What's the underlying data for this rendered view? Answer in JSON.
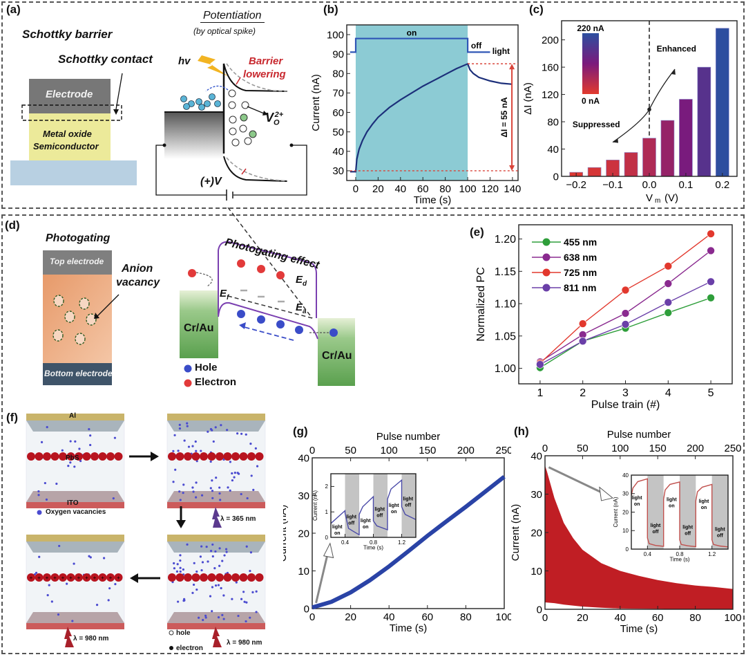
{
  "panels": {
    "a": {
      "label": "(a)",
      "title": "Schottky barrier",
      "contact_label": "Schottky contact",
      "electrode": "Electrode",
      "semiconductor_line1": "Metal oxide",
      "semiconductor_line2": "Semiconductor",
      "potentiation_title": "Potentiation",
      "potentiation_sub": "(by optical spike)",
      "hv": "hv",
      "barrier_line1": "Barrier",
      "barrier_line2": "lowering",
      "vacancy": "V",
      "vacancy_sub": "O",
      "vacancy_sup": "2+",
      "bias": "(+)V"
    },
    "b": {
      "label": "(b)"
    },
    "c": {
      "label": "(c)"
    },
    "d": {
      "label": "(d)",
      "title": "Photogating",
      "top_electrode": "Top electrode",
      "bottom_electrode": "Bottom electrode",
      "anion_line1": "Anion",
      "anion_line2": "vacancy",
      "effect_title": "Photogating effect",
      "ed": "E",
      "ed_sub": "d",
      "ef": "E",
      "ef_sub": "f",
      "ea": "E",
      "ea_sub": "a",
      "contact_left": "Cr/Au",
      "contact_right": "Cr/Au",
      "legend_hole": "Hole",
      "legend_electron": "Electron"
    },
    "e": {
      "label": "(e)"
    },
    "f": {
      "label": "(f)",
      "al": "Al",
      "pbs": "PbS",
      "ito": "ITO",
      "legend_vacancy": "Oxygen vacancies",
      "wl_365": "λ = 365 nm",
      "wl_980_a": "λ = 980 nm",
      "wl_980_b": "λ = 980 nm",
      "legend_hole": "hole",
      "legend_electron": "electron"
    },
    "g": {
      "label": "(g)"
    },
    "h": {
      "label": "(h)"
    }
  },
  "chart_data": [
    {
      "id": "b",
      "type": "line",
      "xlabel": "Time (s)",
      "ylabel": "Current (nA)",
      "xlim": [
        -8,
        145
      ],
      "ylim": [
        25,
        105
      ],
      "xticks": [
        0,
        20,
        40,
        60,
        80,
        100,
        120,
        140
      ],
      "yticks": [
        30,
        40,
        50,
        60,
        70,
        80,
        90,
        100
      ],
      "shaded_region": {
        "x": [
          0,
          100
        ],
        "color": "#8ccbd4"
      },
      "light_trace": {
        "x": [
          -5,
          0,
          0,
          100,
          100,
          120
        ],
        "y": [
          91,
          91,
          98,
          98,
          91,
          91
        ],
        "on_label": "on",
        "off_label": "off",
        "name": "light"
      },
      "series": [
        {
          "name": "current",
          "x": [
            -5,
            0,
            1,
            3,
            6,
            10,
            15,
            20,
            30,
            40,
            50,
            60,
            70,
            80,
            90,
            100,
            102,
            105,
            110,
            120,
            130,
            140
          ],
          "y": [
            29.5,
            29.5,
            36,
            41,
            45.5,
            50,
            54,
            57.5,
            62.5,
            66.5,
            70,
            73.5,
            76.5,
            79.5,
            82.5,
            85,
            82,
            80,
            78,
            76.2,
            75,
            74.5
          ]
        }
      ],
      "annotation": {
        "text": "ΔI = 55 nA",
        "y_top": 85,
        "y_bottom": 30
      }
    },
    {
      "id": "c",
      "type": "bar",
      "xlabel": "V_m (V)",
      "ylabel": "ΔI (nA)",
      "x": [
        -0.2,
        -0.15,
        -0.1,
        -0.05,
        0.0,
        0.05,
        0.1,
        0.15,
        0.2
      ],
      "values": [
        6,
        13,
        24,
        35,
        56,
        82,
        113,
        160,
        217
      ],
      "xticks": [
        -0.2,
        -0.1,
        0.0,
        0.1,
        0.2
      ],
      "xtick_labels": [
        "−0.2",
        "−0.1",
        "0.0",
        "0.1",
        "0.2"
      ],
      "yticks": [
        0,
        40,
        80,
        120,
        160,
        200
      ],
      "xlim": [
        -0.24,
        0.24
      ],
      "ylim": [
        0,
        228
      ],
      "colorbar": {
        "max_label": "220 nA",
        "min_label": "0 nA",
        "low_color": "#e23a2e",
        "mid_color": "#7b1a7c",
        "high_color": "#2c4fa0"
      },
      "annotations": [
        "Enhanced",
        "Suppressed"
      ]
    },
    {
      "id": "e",
      "type": "line",
      "xlabel": "Pulse train (#)",
      "ylabel": "Normalized PC",
      "x": [
        1,
        2,
        3,
        4,
        5
      ],
      "xlim": [
        0.5,
        5.5
      ],
      "ylim": [
        0.976,
        1.222
      ],
      "yticks": [
        1.0,
        1.05,
        1.1,
        1.15,
        1.2
      ],
      "ytick_labels": [
        "1.00",
        "1.05",
        "1.10",
        "1.15",
        "1.20"
      ],
      "legend_position": "top-left",
      "series": [
        {
          "name": "455 nm",
          "color": "#2e9e3a",
          "values": [
            1.001,
            1.042,
            1.062,
            1.086,
            1.109
          ]
        },
        {
          "name": "638 nm",
          "color": "#8a2a8f",
          "values": [
            1.01,
            1.052,
            1.085,
            1.131,
            1.182
          ]
        },
        {
          "name": "725 nm",
          "color": "#e2382d",
          "values": [
            1.008,
            1.069,
            1.121,
            1.158,
            1.208
          ]
        },
        {
          "name": "811 nm",
          "color": "#6a3fa8",
          "values": [
            1.006,
            1.042,
            1.068,
            1.102,
            1.134
          ]
        }
      ]
    },
    {
      "id": "g",
      "type": "line",
      "xlabel": "Time (s)",
      "ylabel": "Current (nA)",
      "top_xlabel": "Pulse number",
      "xlim": [
        0,
        100
      ],
      "ylim": [
        0,
        40
      ],
      "xticks": [
        0,
        20,
        40,
        60,
        80,
        100
      ],
      "yticks": [
        0,
        10,
        20,
        30,
        40
      ],
      "top_xticks": [
        0,
        50,
        100,
        150,
        200,
        250
      ],
      "series": [
        {
          "name": "current",
          "color": "#2a43a6",
          "x": [
            0,
            10,
            20,
            30,
            40,
            50,
            60,
            70,
            80,
            90,
            100
          ],
          "y": [
            0.3,
            1.8,
            4.3,
            7.5,
            11.2,
            15.2,
            19.3,
            23.2,
            27.0,
            31.0,
            35.0
          ]
        }
      ],
      "inset": {
        "xlabel": "Time (s)",
        "ylabel": "Current (nA)",
        "xlim": [
          0.2,
          1.4
        ],
        "ylim": [
          0,
          2.5
        ],
        "xticks": [
          0.4,
          0.8,
          1.2
        ],
        "yticks": [
          0,
          1,
          2
        ],
        "off_bands": [
          [
            0.4,
            0.6
          ],
          [
            0.8,
            1.0
          ],
          [
            1.2,
            1.4
          ]
        ],
        "labels": [
          {
            "text": [
              "light",
              "on"
            ],
            "x": 0.29,
            "y": 0.35
          },
          {
            "text": [
              "light",
              "off"
            ],
            "x": 0.49,
            "y": 0.75
          },
          {
            "text": [
              "light",
              "on"
            ],
            "x": 0.69,
            "y": 0.6
          },
          {
            "text": [
              "light",
              "off"
            ],
            "x": 0.89,
            "y": 1.05
          },
          {
            "text": [
              "light",
              "on"
            ],
            "x": 1.09,
            "y": 1.2
          },
          {
            "text": [
              "light",
              "off"
            ],
            "x": 1.29,
            "y": 1.45
          }
        ],
        "color": "#4a4aa8",
        "x": [
          0.2,
          0.4,
          0.4,
          0.45,
          0.6,
          0.6,
          0.65,
          0.8,
          0.8,
          0.85,
          1.0,
          1.0,
          1.05,
          1.2,
          1.2,
          1.25,
          1.4
        ],
        "y": [
          0.55,
          1.05,
          0.95,
          0.35,
          0.1,
          0.9,
          1.2,
          1.6,
          0.65,
          0.45,
          0.3,
          1.5,
          1.9,
          2.25,
          1.2,
          0.9,
          0.7
        ]
      }
    },
    {
      "id": "h",
      "type": "area",
      "xlabel": "Time (s)",
      "ylabel": "Current (nA)",
      "top_xlabel": "Pulse number",
      "xlim": [
        0,
        100
      ],
      "ylim": [
        0,
        40
      ],
      "xticks": [
        0,
        20,
        40,
        60,
        80,
        100
      ],
      "yticks": [
        0,
        10,
        20,
        30,
        40
      ],
      "top_xticks": [
        0,
        50,
        100,
        150,
        200,
        250
      ],
      "series": [
        {
          "name": "upper envelope",
          "color": "#c01e24",
          "x": [
            0,
            1,
            5,
            10,
            15,
            20,
            30,
            40,
            50,
            60,
            70,
            80,
            90,
            100
          ],
          "y": [
            37.5,
            36,
            29,
            22.5,
            18.5,
            15.5,
            12,
            10,
            8.7,
            7.6,
            6.8,
            6.2,
            5.8,
            5.3
          ]
        },
        {
          "name": "lower envelope",
          "color": "#c01e24",
          "x": [
            0,
            5,
            10,
            20,
            30,
            40,
            60,
            80,
            100
          ],
          "y": [
            1.8,
            1.6,
            1.2,
            0.7,
            0.4,
            0.2,
            0.1,
            0.0,
            0.0
          ]
        }
      ],
      "inset": {
        "xlabel": "Time (s)",
        "ylabel": "Current (nA)",
        "xlim": [
          0.2,
          1.4
        ],
        "ylim": [
          0,
          40
        ],
        "xticks": [
          0.4,
          0.8,
          1.2
        ],
        "yticks": [
          0,
          10,
          20,
          30,
          40
        ],
        "off_bands": [
          [
            0.4,
            0.6
          ],
          [
            0.8,
            1.0
          ],
          [
            1.2,
            1.4
          ]
        ],
        "labels": [
          {
            "text": [
              "light",
              "on"
            ],
            "x": 0.27,
            "y": 27
          },
          {
            "text": [
              "light",
              "off"
            ],
            "x": 0.5,
            "y": 12
          },
          {
            "text": [
              "light",
              "on"
            ],
            "x": 0.7,
            "y": 26
          },
          {
            "text": [
              "light",
              "off"
            ],
            "x": 0.9,
            "y": 11
          },
          {
            "text": [
              "light",
              "on"
            ],
            "x": 1.1,
            "y": 25
          },
          {
            "text": [
              "light",
              "off"
            ],
            "x": 1.3,
            "y": 10
          }
        ],
        "color": "#c0504d",
        "x": [
          0.2,
          0.22,
          0.28,
          0.4,
          0.4,
          0.42,
          0.5,
          0.6,
          0.6,
          0.62,
          0.68,
          0.8,
          0.8,
          0.82,
          0.9,
          1.0,
          1.0,
          1.02,
          1.08,
          1.2,
          1.2,
          1.22,
          1.3,
          1.4
        ],
        "y": [
          29,
          33,
          36.5,
          38,
          6,
          3,
          2,
          1.5,
          27,
          32,
          35,
          36.3,
          5,
          2.5,
          1.8,
          1.3,
          26,
          31,
          33.5,
          35,
          5,
          2.5,
          1.7,
          1.2
        ]
      }
    }
  ]
}
